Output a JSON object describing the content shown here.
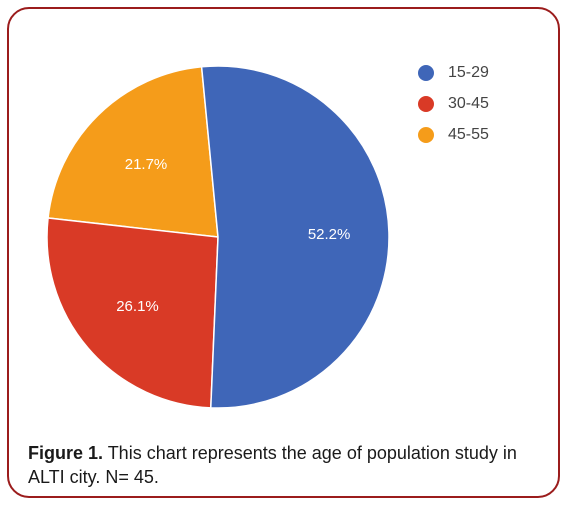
{
  "chart_data": {
    "type": "pie",
    "categories": [
      "15-29",
      "30-45",
      "45-55"
    ],
    "values": [
      52.2,
      26.1,
      21.7
    ],
    "value_labels": [
      "52.2%",
      "26.1%",
      "21.7%"
    ],
    "colors": [
      "#3f66b8",
      "#d93a26",
      "#f59c1a"
    ],
    "legend_placement": "top-right",
    "title": ""
  },
  "caption": {
    "label": "Figure 1.",
    "text": " This chart represents the age of population study in ALTI city. N= 45."
  }
}
